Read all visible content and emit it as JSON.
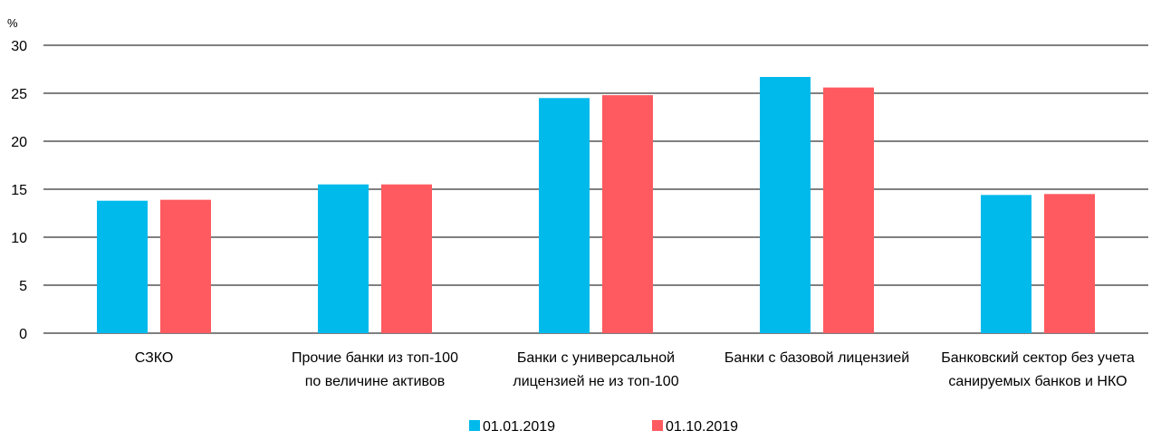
{
  "chart_data": {
    "type": "bar",
    "ylabel": "%",
    "ylim": [
      0,
      30
    ],
    "yticks": [
      "0",
      "5",
      "10",
      "15",
      "20",
      "25",
      "30"
    ],
    "grid": true,
    "legend_position": "bottom",
    "categories": [
      [
        "СЗКО"
      ],
      [
        "Прочие банки из топ-100",
        "по величине активов"
      ],
      [
        "Банки с универсальной",
        "лицензией не из топ-100"
      ],
      [
        "Банки с базовой лицензией"
      ],
      [
        "Банковский сектор без учета",
        "санируемых банков и НКО"
      ]
    ],
    "series": [
      {
        "name": "01.01.2019",
        "color": "#00BAEC",
        "values": [
          13.8,
          15.5,
          24.5,
          26.7,
          14.4
        ]
      },
      {
        "name": "01.10.2019",
        "color": "#FF5A5F",
        "values": [
          13.9,
          15.5,
          24.8,
          25.6,
          14.5
        ]
      }
    ]
  }
}
